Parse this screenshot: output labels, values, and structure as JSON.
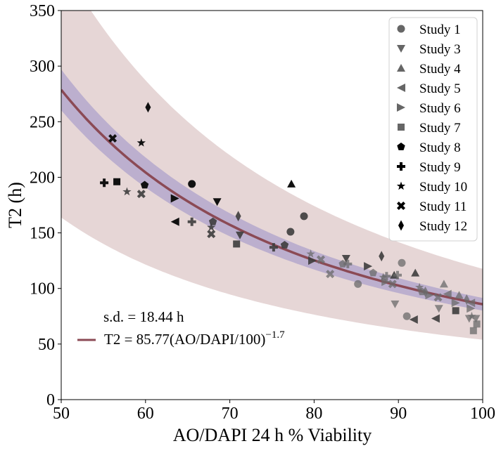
{
  "chart_data": {
    "type": "scatter",
    "xlabel": "AO/DAPI 24 h % Viability",
    "ylabel": "T2 (h)",
    "xlim": [
      50,
      100
    ],
    "ylim": [
      0,
      350
    ],
    "xticks": [
      "50",
      "60",
      "70",
      "80",
      "90",
      "100"
    ],
    "yticks": [
      "0",
      "50",
      "100",
      "150",
      "200",
      "250",
      "300",
      "350"
    ],
    "legend_position": "top-right",
    "fit": {
      "label_prefix": "T2 = 85.77(AO/DAPI/100)",
      "label_exponent": "−1.7",
      "sd_label": "s.d. = 18.44 h",
      "a": 85.77,
      "b": -1.7,
      "sd": 18.44,
      "line_color": "#8b4a55",
      "ci_color": "#b4a8cc",
      "pi_color": "#e6d6d6"
    },
    "series": [
      {
        "name": "Study 1",
        "marker": "circle",
        "points": [
          [
            65.5,
            194
          ],
          [
            77.2,
            151
          ],
          [
            78.8,
            165
          ],
          [
            85.2,
            104
          ],
          [
            90.4,
            123
          ],
          [
            91.0,
            75
          ]
        ]
      },
      {
        "name": "Study 3",
        "marker": "triangle-down",
        "points": [
          [
            68.5,
            178
          ],
          [
            71.2,
            148
          ],
          [
            83.8,
            127
          ],
          [
            89.6,
            86
          ],
          [
            94.8,
            82
          ],
          [
            98.4,
            73
          ],
          [
            99.2,
            73
          ]
        ]
      },
      {
        "name": "Study 4",
        "marker": "triangle-up",
        "points": [
          [
            77.3,
            194
          ],
          [
            89.5,
            112
          ],
          [
            92.0,
            114
          ],
          [
            95.4,
            104
          ],
          [
            97.2,
            94
          ]
        ]
      },
      {
        "name": "Study 5",
        "marker": "triangle-left",
        "points": [
          [
            63.5,
            160
          ],
          [
            91.8,
            72
          ],
          [
            94.4,
            73
          ],
          [
            95.8,
            95
          ],
          [
            98.6,
            87
          ]
        ]
      },
      {
        "name": "Study 6",
        "marker": "triangle-right",
        "points": [
          [
            63.5,
            181
          ],
          [
            79.8,
            125
          ],
          [
            86.4,
            120
          ],
          [
            88.5,
            106
          ],
          [
            93.7,
            94
          ],
          [
            96.8,
            87
          ],
          [
            98.6,
            82
          ]
        ]
      },
      {
        "name": "Study 7",
        "marker": "square",
        "points": [
          [
            56.6,
            196
          ],
          [
            70.8,
            140
          ],
          [
            96.8,
            80
          ],
          [
            98.9,
            62
          ],
          [
            99.3,
            68
          ]
        ]
      },
      {
        "name": "Study 8",
        "marker": "pentagon",
        "points": [
          [
            59.9,
            193
          ],
          [
            68.0,
            160
          ],
          [
            76.5,
            139
          ],
          [
            83.4,
            122
          ],
          [
            87.0,
            114
          ],
          [
            92.8,
            97
          ]
        ]
      },
      {
        "name": "Study 9",
        "marker": "plus",
        "points": [
          [
            55.1,
            195
          ],
          [
            65.5,
            160
          ],
          [
            75.2,
            137
          ],
          [
            84.0,
            122
          ],
          [
            88.6,
            111
          ],
          [
            89.9,
            112
          ]
        ]
      },
      {
        "name": "Study 10",
        "marker": "star",
        "points": [
          [
            59.5,
            231
          ],
          [
            57.8,
            187
          ],
          [
            67.8,
            155
          ],
          [
            79.6,
            131
          ],
          [
            88.2,
            110
          ],
          [
            92.5,
            101
          ],
          [
            98.7,
            75
          ]
        ]
      },
      {
        "name": "Study 11",
        "marker": "x",
        "points": [
          [
            56.1,
            235
          ],
          [
            59.5,
            185
          ],
          [
            67.8,
            149
          ],
          [
            80.8,
            126
          ],
          [
            81.9,
            113
          ],
          [
            89.3,
            104
          ],
          [
            94.7,
            92
          ]
        ]
      },
      {
        "name": "Study 12",
        "marker": "thin-diamond",
        "points": [
          [
            60.3,
            263
          ],
          [
            71.0,
            165
          ],
          [
            88.0,
            129
          ],
          [
            93.2,
            97
          ],
          [
            98.1,
            90
          ]
        ]
      }
    ]
  }
}
